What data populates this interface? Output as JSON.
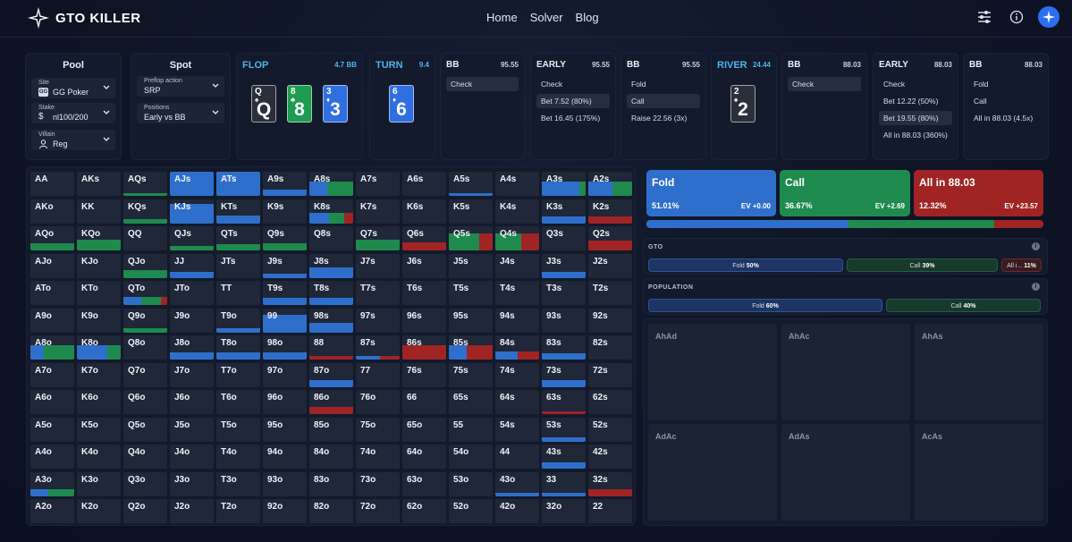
{
  "nav": {
    "brand": "GTO KILLER",
    "links": [
      "Home",
      "Solver",
      "Blog"
    ]
  },
  "pool": {
    "title": "Pool",
    "site_label": "Site",
    "site_value": "GG Poker",
    "stake_label": "Stake",
    "stake_value": "nl100/200",
    "villain_label": "Villain",
    "villain_value": "Reg"
  },
  "spot": {
    "title": "Spot",
    "preflop_label": "Preflop action",
    "preflop_value": "SRP",
    "positions_label": "Positions",
    "positions_value": "Early vs BB"
  },
  "flop": {
    "label": "FLOP",
    "pot": "4.7 BB",
    "cards": [
      {
        "rank": "Q",
        "suit": "♠",
        "color": "#2b2f3a"
      },
      {
        "rank": "8",
        "suit": "♣",
        "color": "#1f9c4f"
      },
      {
        "rank": "3",
        "suit": "♦",
        "color": "#2f6fe0"
      }
    ]
  },
  "turn": {
    "label": "TURN",
    "pot": "9.4",
    "cards": [
      {
        "rank": "6",
        "suit": "♦",
        "color": "#2f6fe0"
      }
    ]
  },
  "bb1": {
    "label": "BB",
    "pot": "95.55",
    "options": [
      "Check"
    ],
    "selected": 0
  },
  "early1": {
    "label": "EARLY",
    "pot": "95.55",
    "options": [
      "Check",
      "Bet 7.52 (80%)",
      "Bet 16.45 (175%)"
    ],
    "selected": 1
  },
  "bb2": {
    "label": "BB",
    "pot": "95.55",
    "options": [
      "Fold",
      "Call",
      "Raise 22.56 (3x)"
    ],
    "selected": 1
  },
  "river": {
    "label": "RIVER",
    "pot": "24.44",
    "cards": [
      {
        "rank": "2",
        "suit": "♠",
        "color": "#2b2f3a"
      }
    ]
  },
  "bb3": {
    "label": "BB",
    "pot": "88.03",
    "options": [
      "Check"
    ],
    "selected": 0
  },
  "early2": {
    "label": "EARLY",
    "pot": "88.03",
    "options": [
      "Check",
      "Bet 12.22 (50%)",
      "Bet 19.55 (80%)",
      "All in 88.03 (360%)"
    ],
    "selected": 2
  },
  "bb4": {
    "label": "BB",
    "pot": "88.03",
    "options": [
      "Fold",
      "Call",
      "All in 88.03 (4.5x)"
    ],
    "selected": -1
  },
  "colors": {
    "fold": "#2f6fcc",
    "call": "#1e8a4e",
    "allin": "#a02424",
    "cell": "#1f2738"
  },
  "grid": {
    "cells": [
      [
        "AA",
        "AKs",
        "AQs",
        "AJs",
        "ATs",
        "A9s",
        "A8s",
        "A7s",
        "A6s",
        "A5s",
        "A4s",
        "A3s",
        "A2s"
      ],
      [
        "AKo",
        "KK",
        "KQs",
        "KJs",
        "KTs",
        "K9s",
        "K8s",
        "K7s",
        "K6s",
        "K5s",
        "K4s",
        "K3s",
        "K2s"
      ],
      [
        "AQo",
        "KQo",
        "QQ",
        "QJs",
        "QTs",
        "Q9s",
        "Q8s",
        "Q7s",
        "Q6s",
        "Q5s",
        "Q4s",
        "Q3s",
        "Q2s"
      ],
      [
        "AJo",
        "KJo",
        "QJo",
        "JJ",
        "JTs",
        "J9s",
        "J8s",
        "J7s",
        "J6s",
        "J5s",
        "J4s",
        "J3s",
        "J2s"
      ],
      [
        "ATo",
        "KTo",
        "QTo",
        "JTo",
        "TT",
        "T9s",
        "T8s",
        "T7s",
        "T6s",
        "T5s",
        "T4s",
        "T3s",
        "T2s"
      ],
      [
        "A9o",
        "K9o",
        "Q9o",
        "J9o",
        "T9o",
        "99",
        "98s",
        "97s",
        "96s",
        "95s",
        "94s",
        "93s",
        "92s"
      ],
      [
        "A8o",
        "K8o",
        "Q8o",
        "J8o",
        "T8o",
        "98o",
        "88",
        "87s",
        "86s",
        "85s",
        "84s",
        "83s",
        "82s"
      ],
      [
        "A7o",
        "K7o",
        "Q7o",
        "J7o",
        "T7o",
        "97o",
        "87o",
        "77",
        "76s",
        "75s",
        "74s",
        "73s",
        "72s"
      ],
      [
        "A6o",
        "K6o",
        "Q6o",
        "J6o",
        "T6o",
        "96o",
        "86o",
        "76o",
        "66",
        "65s",
        "64s",
        "63s",
        "62s"
      ],
      [
        "A5o",
        "K5o",
        "Q5o",
        "J5o",
        "T5o",
        "95o",
        "85o",
        "75o",
        "65o",
        "55",
        "54s",
        "53s",
        "52s"
      ],
      [
        "A4o",
        "K4o",
        "Q4o",
        "J4o",
        "T4o",
        "94o",
        "84o",
        "74o",
        "64o",
        "54o",
        "44",
        "43s",
        "42s"
      ],
      [
        "A3o",
        "K3o",
        "Q3o",
        "J3o",
        "T3o",
        "93o",
        "83o",
        "73o",
        "63o",
        "53o",
        "43o",
        "33",
        "32s"
      ],
      [
        "A2o",
        "K2o",
        "Q2o",
        "J2o",
        "T2o",
        "92o",
        "82o",
        "72o",
        "62o",
        "52o",
        "42o",
        "32o",
        "22"
      ]
    ],
    "strategy": {
      "AQs": {
        "h": 0.1,
        "f": 0.0,
        "c": 1.0,
        "a": 0.0
      },
      "AJs": {
        "h": 1.0,
        "f": 1.0,
        "c": 0.0,
        "a": 0.0
      },
      "ATs": {
        "h": 1.0,
        "f": 1.0,
        "c": 0.0,
        "a": 0.0
      },
      "A9s": {
        "h": 0.25,
        "f": 1.0,
        "c": 0.0,
        "a": 0.0
      },
      "A8s": {
        "h": 0.6,
        "f": 0.4,
        "c": 0.6,
        "a": 0.0
      },
      "A5s": {
        "h": 0.12,
        "f": 1.0,
        "c": 0.0,
        "a": 0.0
      },
      "A3s": {
        "h": 0.6,
        "f": 0.85,
        "c": 0.15,
        "a": 0.0
      },
      "A2s": {
        "h": 0.6,
        "f": 0.55,
        "c": 0.45,
        "a": 0.0
      },
      "KQs": {
        "h": 0.2,
        "f": 0.0,
        "c": 1.0,
        "a": 0.0
      },
      "KJs": {
        "h": 0.8,
        "f": 1.0,
        "c": 0.0,
        "a": 0.0
      },
      "KTs": {
        "h": 0.35,
        "f": 1.0,
        "c": 0.0,
        "a": 0.0
      },
      "K8s": {
        "h": 0.45,
        "f": 0.45,
        "c": 0.35,
        "a": 0.2
      },
      "K3s": {
        "h": 0.3,
        "f": 1.0,
        "c": 0.0,
        "a": 0.0
      },
      "K2s": {
        "h": 0.3,
        "f": 0.0,
        "c": 0.0,
        "a": 1.0
      },
      "AQo": {
        "h": 0.3,
        "f": 0.0,
        "c": 1.0,
        "a": 0.0
      },
      "KQo": {
        "h": 0.45,
        "f": 0.0,
        "c": 1.0,
        "a": 0.0
      },
      "QJs": {
        "h": 0.2,
        "f": 0.0,
        "c": 1.0,
        "a": 0.0
      },
      "QTs": {
        "h": 0.25,
        "f": 0.0,
        "c": 1.0,
        "a": 0.0
      },
      "Q9s": {
        "h": 0.3,
        "f": 0.0,
        "c": 1.0,
        "a": 0.0
      },
      "Q7s": {
        "h": 0.45,
        "f": 0.0,
        "c": 1.0,
        "a": 0.0
      },
      "Q6s": {
        "h": 0.35,
        "f": 0.0,
        "c": 0.0,
        "a": 1.0
      },
      "Q5s": {
        "h": 0.7,
        "f": 0.0,
        "c": 0.7,
        "a": 0.3
      },
      "Q4s": {
        "h": 0.7,
        "f": 0.0,
        "c": 0.6,
        "a": 0.4
      },
      "Q2s": {
        "h": 0.4,
        "f": 0.0,
        "c": 0.0,
        "a": 1.0
      },
      "QJo": {
        "h": 0.35,
        "f": 0.0,
        "c": 1.0,
        "a": 0.0
      },
      "JJ": {
        "h": 0.25,
        "f": 1.0,
        "c": 0.0,
        "a": 0.0
      },
      "J9s": {
        "h": 0.2,
        "f": 1.0,
        "c": 0.0,
        "a": 0.0
      },
      "J8s": {
        "h": 0.45,
        "f": 1.0,
        "c": 0.0,
        "a": 0.0
      },
      "J3s": {
        "h": 0.25,
        "f": 1.0,
        "c": 0.0,
        "a": 0.0
      },
      "QTo": {
        "h": 0.35,
        "f": 0.4,
        "c": 0.45,
        "a": 0.15
      },
      "T9s": {
        "h": 0.3,
        "f": 1.0,
        "c": 0.0,
        "a": 0.0
      },
      "T8s": {
        "h": 0.3,
        "f": 1.0,
        "c": 0.0,
        "a": 0.0
      },
      "Q9o": {
        "h": 0.2,
        "f": 0.0,
        "c": 1.0,
        "a": 0.0
      },
      "T9o": {
        "h": 0.2,
        "f": 1.0,
        "c": 0.0,
        "a": 0.0
      },
      "99": {
        "h": 0.75,
        "f": 1.0,
        "c": 0.0,
        "a": 0.0
      },
      "98s": {
        "h": 0.4,
        "f": 1.0,
        "c": 0.0,
        "a": 0.0
      },
      "A8o": {
        "h": 0.6,
        "f": 0.3,
        "c": 0.7,
        "a": 0.0
      },
      "K8o": {
        "h": 0.6,
        "f": 0.7,
        "c": 0.3,
        "a": 0.0
      },
      "J8o": {
        "h": 0.3,
        "f": 1.0,
        "c": 0.0,
        "a": 0.0
      },
      "T8o": {
        "h": 0.3,
        "f": 1.0,
        "c": 0.0,
        "a": 0.0
      },
      "98o": {
        "h": 0.3,
        "f": 1.0,
        "c": 0.0,
        "a": 0.0
      },
      "88": {
        "h": 0.15,
        "f": 0.0,
        "c": 0.0,
        "a": 1.0
      },
      "87s": {
        "h": 0.15,
        "f": 0.55,
        "c": 0.0,
        "a": 0.45
      },
      "86s": {
        "h": 0.6,
        "f": 0.0,
        "c": 0.0,
        "a": 1.0
      },
      "85s": {
        "h": 0.6,
        "f": 0.4,
        "c": 0.0,
        "a": 0.6
      },
      "84s": {
        "h": 0.35,
        "f": 0.5,
        "c": 0.0,
        "a": 0.5
      },
      "83s": {
        "h": 0.25,
        "f": 1.0,
        "c": 0.0,
        "a": 0.0
      },
      "87o": {
        "h": 0.3,
        "f": 1.0,
        "c": 0.0,
        "a": 0.0
      },
      "73s": {
        "h": 0.3,
        "f": 1.0,
        "c": 0.0,
        "a": 0.0
      },
      "86o": {
        "h": 0.3,
        "f": 0.0,
        "c": 0.0,
        "a": 1.0
      },
      "63s": {
        "h": 0.1,
        "f": 0.0,
        "c": 0.0,
        "a": 1.0
      },
      "53s": {
        "h": 0.2,
        "f": 1.0,
        "c": 0.0,
        "a": 0.0
      },
      "43s": {
        "h": 0.25,
        "f": 1.0,
        "c": 0.0,
        "a": 0.0
      },
      "A3o": {
        "h": 0.3,
        "f": 0.4,
        "c": 0.6,
        "a": 0.0
      },
      "43o": {
        "h": 0.15,
        "f": 1.0,
        "c": 0.0,
        "a": 0.0
      },
      "33": {
        "h": 0.15,
        "f": 1.0,
        "c": 0.0,
        "a": 0.0
      },
      "32s": {
        "h": 0.3,
        "f": 0.0,
        "c": 0.0,
        "a": 1.0
      }
    }
  },
  "actions": [
    {
      "title": "Fold",
      "pct": "51.01%",
      "ev": "EV +0.00",
      "color": "#2f6fcc"
    },
    {
      "title": "Call",
      "pct": "36.67%",
      "ev": "EV +2.69",
      "color": "#1e8a4e"
    },
    {
      "title": "All in 88.03",
      "pct": "12.32%",
      "ev": "EV +23.57",
      "color": "#a02424"
    }
  ],
  "summary_bar": [
    0.5101,
    0.3667,
    0.1232
  ],
  "gto": {
    "title": "GTO",
    "pills": [
      {
        "label": "Fold",
        "value": "50%",
        "share": 0.5
      },
      {
        "label": "Call",
        "value": "39%",
        "share": 0.39
      },
      {
        "label": "All i...",
        "value": "11%",
        "share": 0.11
      }
    ]
  },
  "population": {
    "title": "POPULATION",
    "pills": [
      {
        "label": "Fold",
        "value": "60%",
        "share": 0.6
      },
      {
        "label": "Call",
        "value": "40%",
        "share": 0.4
      }
    ]
  },
  "combos": [
    "AhAd",
    "AhAc",
    "AhAs",
    "AdAc",
    "AdAs",
    "AcAs"
  ]
}
